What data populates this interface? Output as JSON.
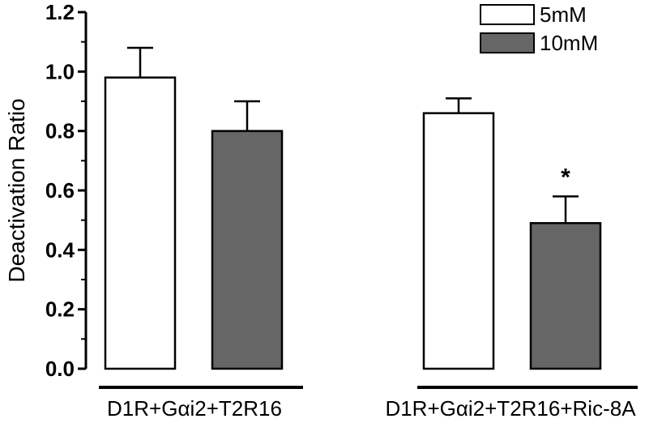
{
  "chart_data": {
    "type": "bar",
    "ylabel": "Deactivation Ratio",
    "ylim": [
      0,
      1.2
    ],
    "yticks": [
      "0.0",
      "0.2",
      "0.4",
      "0.6",
      "0.8",
      "1.0",
      "1.2"
    ],
    "groups": [
      {
        "label": "D1R+Gαi2+T2R16"
      },
      {
        "label": "D1R+Gαi2+T2R16+Ric-8A"
      }
    ],
    "series": [
      {
        "name": "5mM",
        "color": "#ffffff",
        "values": [
          0.98,
          0.86
        ],
        "errors": [
          0.1,
          0.05
        ]
      },
      {
        "name": "10mM",
        "color": "#666666",
        "values": [
          0.8,
          0.49
        ],
        "errors": [
          0.1,
          0.09
        ]
      }
    ],
    "annotations": [
      {
        "text": "*",
        "group": 1,
        "series": 1
      }
    ],
    "grid": false,
    "legend": "top-right"
  }
}
